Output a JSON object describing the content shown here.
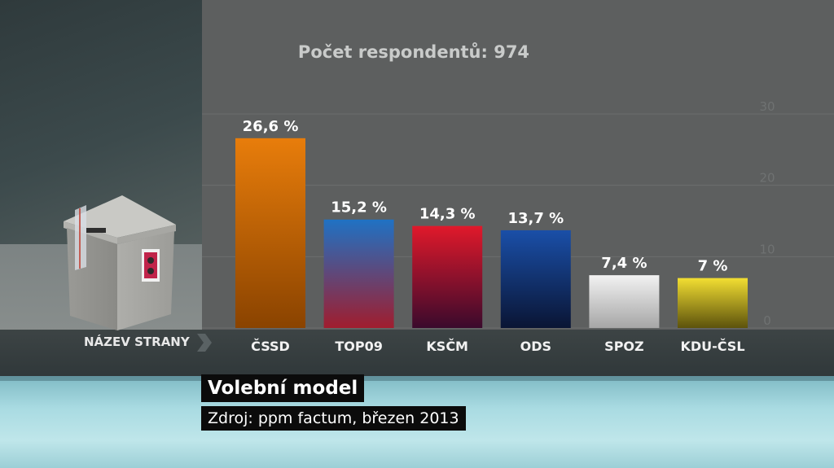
{
  "respondents_label": "Počet respondentů: 974",
  "axis_name_label": "NÁZEV STRANY",
  "title": "Volební model",
  "source": "Zdroj: ppm factum, březen 2013",
  "chart_data": {
    "type": "bar",
    "categories": [
      "ČSSD",
      "TOP09",
      "KSČM",
      "ODS",
      "SPOZ",
      "KDU-ČSL"
    ],
    "values": [
      26.6,
      15.2,
      14.3,
      13.7,
      7.4,
      7
    ],
    "value_labels": [
      "26,6 %",
      "15,2 %",
      "14,3 %",
      "13,7 %",
      "7,4 %",
      "7 %"
    ],
    "ylim": [
      0,
      30
    ],
    "yticks": [
      0,
      10,
      20,
      30
    ],
    "grid": true,
    "colors": [
      [
        "#e87d0b",
        "#8a4300"
      ],
      [
        "#1f72c4",
        "#a01d2e"
      ],
      [
        "#e0192b",
        "#3a0a2c"
      ],
      [
        "#1a4fa8",
        "#0a1534"
      ],
      [
        "#f2f2f2",
        "#a6a6a6"
      ],
      [
        "#f2de32",
        "#5c520c"
      ]
    ]
  }
}
